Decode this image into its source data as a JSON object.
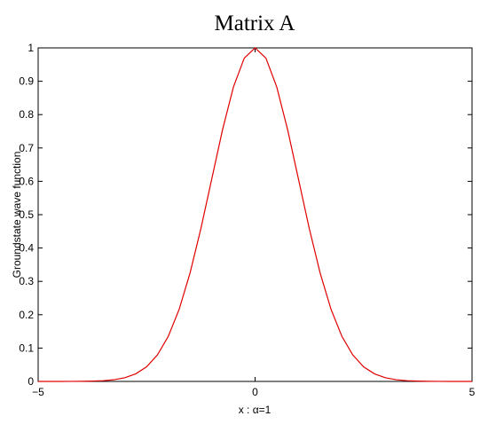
{
  "chart_data": {
    "type": "line",
    "title": "Matrix A",
    "xlabel": "x : α=1",
    "ylabel": "Groundstate wave function",
    "x": [
      -5,
      -4.75,
      -4.5,
      -4.25,
      -4,
      -3.75,
      -3.5,
      -3.25,
      -3,
      -2.75,
      -2.5,
      -2.25,
      -2,
      -1.75,
      -1.5,
      -1.25,
      -1,
      -0.75,
      -0.5,
      -0.25,
      0,
      0.25,
      0.5,
      0.75,
      1,
      1.25,
      1.5,
      1.75,
      2,
      2.25,
      2.5,
      2.75,
      3,
      3.25,
      3.5,
      3.75,
      4,
      4.25,
      4.5,
      4.75,
      5
    ],
    "series": [
      {
        "name": "Groundstate",
        "color": "#e00000",
        "values": [
          0,
          0,
          0,
          0.0001,
          0.0003,
          0.0009,
          0.0022,
          0.0051,
          0.0111,
          0.0228,
          0.0439,
          0.0796,
          0.1353,
          0.2163,
          0.3247,
          0.4578,
          0.6065,
          0.7548,
          0.8825,
          0.9692,
          1,
          0.9692,
          0.8825,
          0.7548,
          0.6065,
          0.4578,
          0.3247,
          0.2163,
          0.1353,
          0.0796,
          0.0439,
          0.0228,
          0.0111,
          0.0051,
          0.0022,
          0.0009,
          0.0003,
          0.0001,
          0,
          0,
          0
        ]
      }
    ],
    "xlim": [
      -5,
      5
    ],
    "xticks": [
      {
        "value": -5,
        "label": "−5"
      },
      0,
      5
    ],
    "ylim": [
      0,
      1
    ],
    "yticks": [
      0,
      0.1,
      0.2,
      0.3,
      0.4,
      0.5,
      0.6,
      0.7,
      0.8,
      0.9,
      1
    ]
  }
}
